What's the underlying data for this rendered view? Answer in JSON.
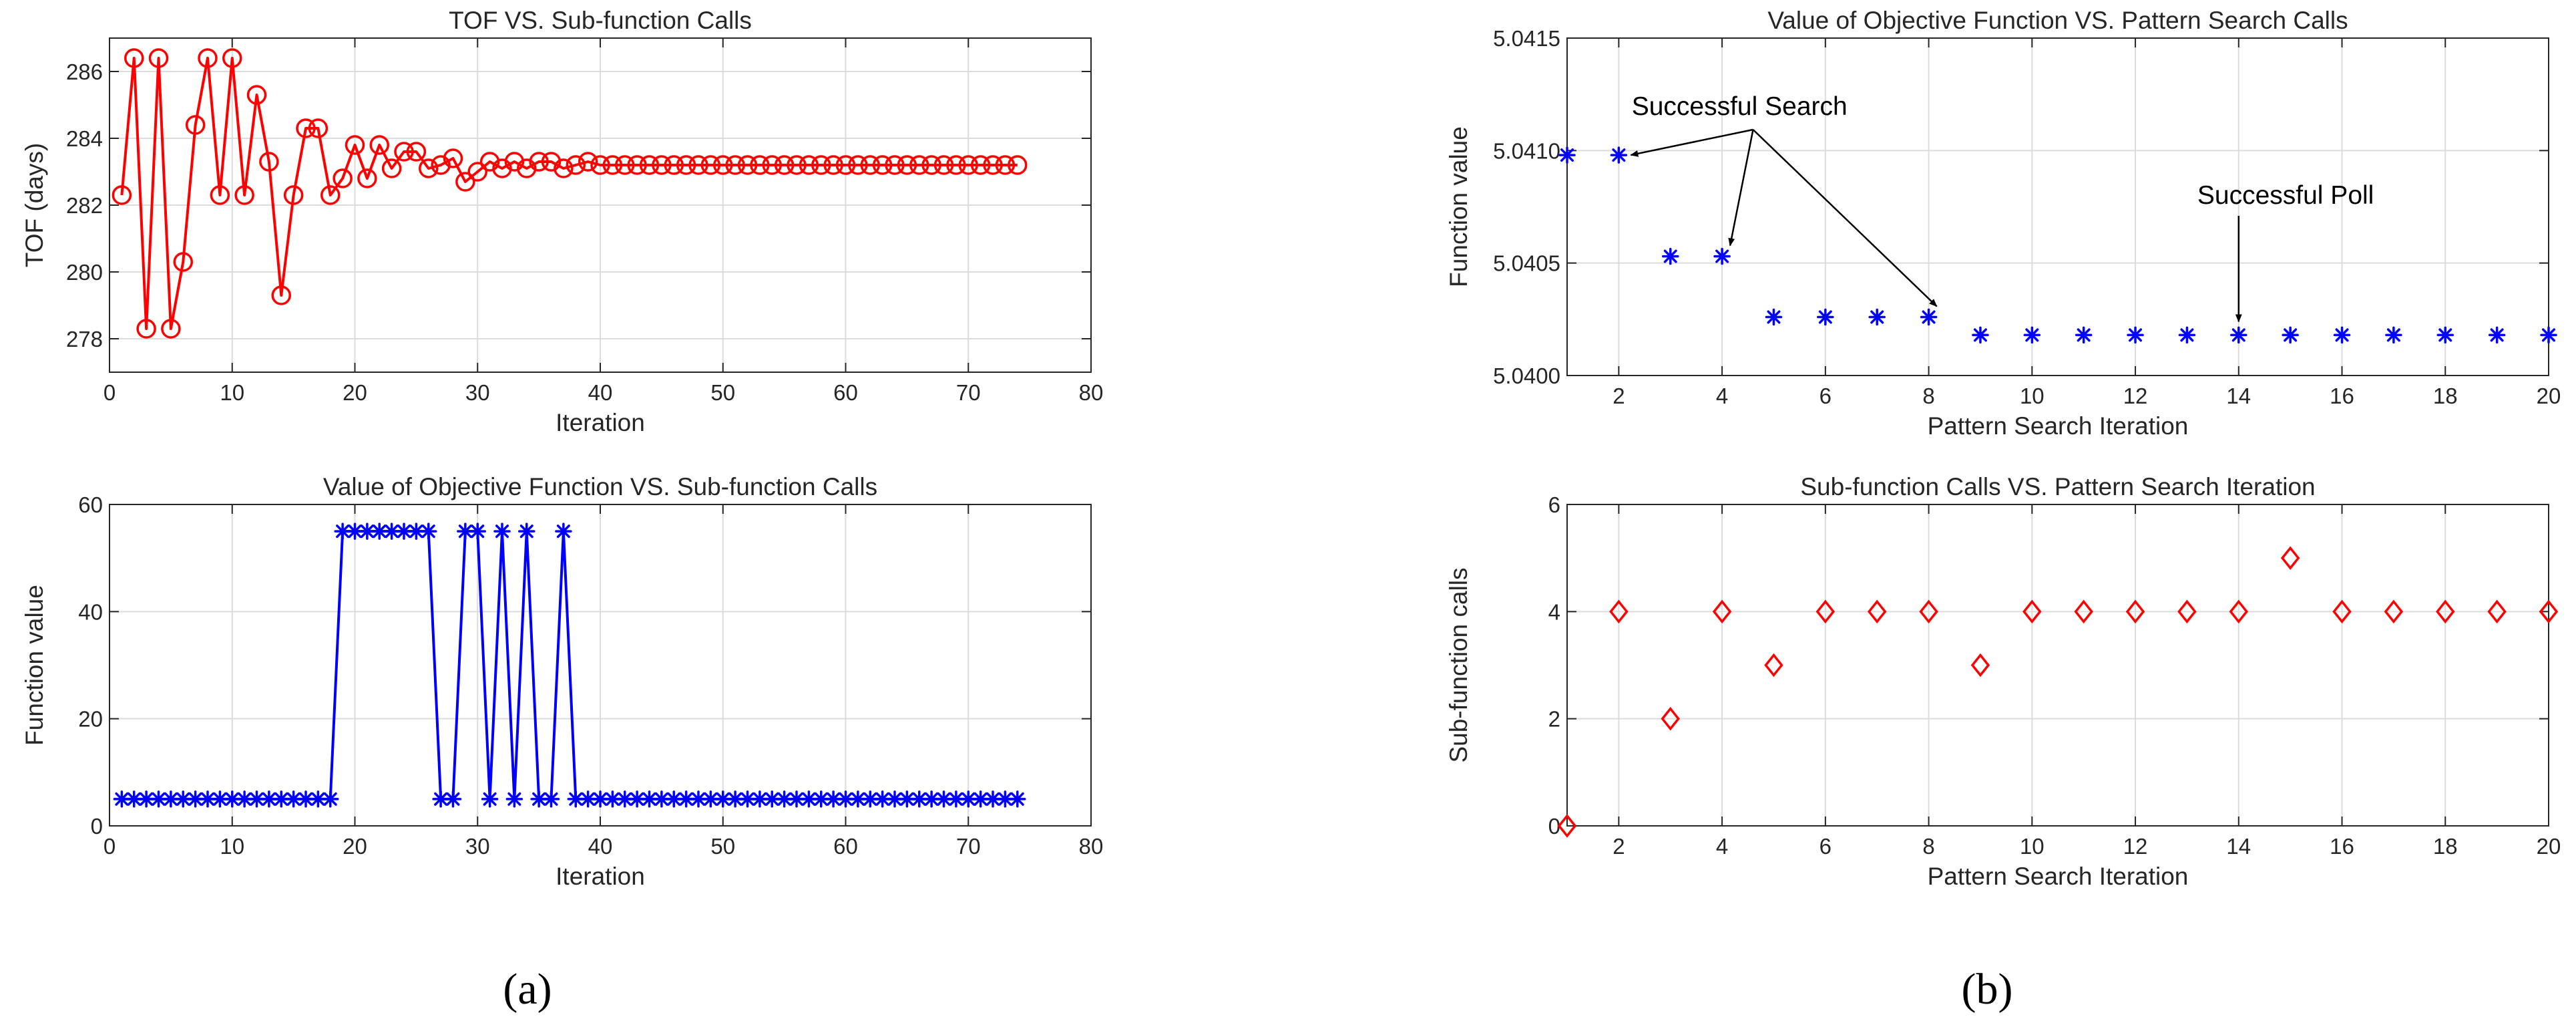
{
  "figure": {
    "panel_labels": [
      "(a)",
      "(b)"
    ]
  },
  "chart_data": [
    {
      "type": "line",
      "title": "TOF VS. Sub-function Calls",
      "xlabel": "Iteration",
      "ylabel": "TOF (days)",
      "xlim": [
        0,
        80
      ],
      "ylim": [
        277,
        287
      ],
      "xticks": [
        0,
        10,
        20,
        30,
        40,
        50,
        60,
        70,
        80
      ],
      "yticks": [
        278,
        280,
        282,
        284,
        286
      ],
      "grid": true,
      "color": "#ff0000",
      "marker": "circle",
      "series": [
        {
          "name": "TOF",
          "x": [
            1,
            2,
            3,
            4,
            5,
            6,
            7,
            8,
            9,
            10,
            11,
            12,
            13,
            14,
            15,
            16,
            17,
            18,
            19,
            20,
            21,
            22,
            23,
            24,
            25,
            26,
            27,
            28,
            29,
            30,
            31,
            32,
            33,
            34,
            35,
            36,
            37,
            38,
            39,
            40,
            41,
            42,
            43,
            44,
            45,
            46,
            47,
            48,
            49,
            50,
            51,
            52,
            53,
            54,
            55,
            56,
            57,
            58,
            59,
            60,
            61,
            62,
            63,
            64,
            65,
            66,
            67,
            68,
            69,
            70,
            71,
            72,
            73,
            74
          ],
          "y": [
            282.3,
            286.4,
            278.3,
            286.4,
            278.3,
            280.3,
            284.4,
            286.4,
            282.3,
            286.4,
            282.3,
            285.3,
            283.3,
            279.3,
            282.3,
            284.3,
            284.3,
            282.3,
            282.8,
            283.8,
            282.8,
            283.8,
            283.1,
            283.6,
            283.6,
            283.1,
            283.2,
            283.4,
            282.7,
            283.0,
            283.3,
            283.1,
            283.3,
            283.1,
            283.3,
            283.3,
            283.1,
            283.2,
            283.3,
            283.2,
            283.2,
            283.2,
            283.2,
            283.2,
            283.2,
            283.2,
            283.2,
            283.2,
            283.2,
            283.2,
            283.2,
            283.2,
            283.2,
            283.2,
            283.2,
            283.2,
            283.2,
            283.2,
            283.2,
            283.2,
            283.2,
            283.2,
            283.2,
            283.2,
            283.2,
            283.2,
            283.2,
            283.2,
            283.2,
            283.2,
            283.2,
            283.2,
            283.2,
            283.2
          ]
        }
      ]
    },
    {
      "type": "line",
      "title": "Value of Objective Function VS. Sub-function Calls",
      "xlabel": "Iteration",
      "ylabel": "Function value",
      "xlim": [
        0,
        80
      ],
      "ylim": [
        0,
        60
      ],
      "xticks": [
        0,
        10,
        20,
        30,
        40,
        50,
        60,
        70,
        80
      ],
      "yticks": [
        0,
        20,
        40,
        60
      ],
      "grid": true,
      "color": "#0000ff",
      "marker": "asterisk",
      "series": [
        {
          "name": "Function value",
          "x": [
            1,
            2,
            3,
            4,
            5,
            6,
            7,
            8,
            9,
            10,
            11,
            12,
            13,
            14,
            15,
            16,
            17,
            18,
            19,
            20,
            21,
            22,
            23,
            24,
            25,
            26,
            27,
            28,
            29,
            30,
            31,
            32,
            33,
            34,
            35,
            36,
            37,
            38,
            39,
            40,
            41,
            42,
            43,
            44,
            45,
            46,
            47,
            48,
            49,
            50,
            51,
            52,
            53,
            54,
            55,
            56,
            57,
            58,
            59,
            60,
            61,
            62,
            63,
            64,
            65,
            66,
            67,
            68,
            69,
            70,
            71,
            72,
            73,
            74
          ],
          "y": [
            5,
            5,
            5,
            5,
            5,
            5,
            5,
            5,
            5,
            5,
            5,
            5,
            5,
            5,
            5,
            5,
            5,
            5,
            55,
            55,
            55,
            55,
            55,
            55,
            55,
            55,
            5,
            5,
            55,
            55,
            5,
            55,
            5,
            55,
            5,
            5,
            55,
            5,
            5,
            5,
            5,
            5,
            5,
            5,
            5,
            5,
            5,
            5,
            5,
            5,
            5,
            5,
            5,
            5,
            5,
            5,
            5,
            5,
            5,
            5,
            5,
            5,
            5,
            5,
            5,
            5,
            5,
            5,
            5,
            5,
            5,
            5,
            5,
            5
          ]
        }
      ]
    },
    {
      "type": "scatter",
      "title": "Value of Objective Function VS. Pattern Search Calls",
      "xlabel": "Pattern Search Iteration",
      "ylabel": "Function value",
      "xlim": [
        1,
        20
      ],
      "ylim": [
        5.04,
        5.0415
      ],
      "xticks": [
        2,
        4,
        6,
        8,
        10,
        12,
        14,
        16,
        18,
        20
      ],
      "yticks": [
        "5.0400",
        "5.0405",
        "5.0410",
        "5.0415"
      ],
      "grid": true,
      "color": "#0000ff",
      "marker": "asterisk",
      "series": [
        {
          "name": "Function value",
          "x": [
            1,
            2,
            3,
            4,
            5,
            6,
            7,
            8,
            9,
            10,
            11,
            12,
            13,
            14,
            15,
            16,
            17,
            18,
            19,
            20
          ],
          "y": [
            5.04098,
            5.04098,
            5.04053,
            5.04053,
            5.04026,
            5.04026,
            5.04026,
            5.04026,
            5.04018,
            5.04018,
            5.04018,
            5.04018,
            5.04018,
            5.04018,
            5.04018,
            5.04018,
            5.04018,
            5.04018,
            5.04018,
            5.04018
          ]
        }
      ],
      "annotations": [
        {
          "text": "Successful Search",
          "points_to_x": [
            2,
            4,
            8
          ]
        },
        {
          "text": "Successful Poll",
          "points_to_x": [
            14
          ]
        }
      ]
    },
    {
      "type": "scatter",
      "title": "Sub-function Calls VS. Pattern Search Iteration",
      "xlabel": "Pattern Search Iteration",
      "ylabel": "Sub-function calls",
      "xlim": [
        1,
        20
      ],
      "ylim": [
        0,
        6
      ],
      "xticks": [
        2,
        4,
        6,
        8,
        10,
        12,
        14,
        16,
        18,
        20
      ],
      "yticks": [
        0,
        2,
        4,
        6
      ],
      "grid": true,
      "color": "#ff0000",
      "marker": "diamond",
      "series": [
        {
          "name": "Sub-function calls",
          "x": [
            1,
            2,
            3,
            4,
            5,
            6,
            7,
            8,
            9,
            10,
            11,
            12,
            13,
            14,
            15,
            16,
            17,
            18,
            19,
            20
          ],
          "y": [
            0,
            4,
            2,
            4,
            3,
            4,
            4,
            4,
            3,
            4,
            4,
            4,
            4,
            4,
            5,
            4,
            4,
            4,
            4,
            4
          ]
        }
      ]
    }
  ]
}
